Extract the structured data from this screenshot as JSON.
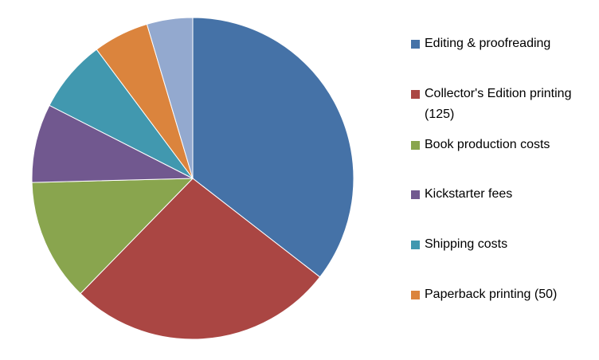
{
  "chart_data": {
    "type": "pie",
    "categories": [
      "Editing & proofreading",
      "Collector's Edition printing (125)",
      "Book production costs",
      "Kickstarter fees",
      "Shipping costs",
      "Paperback printing (50)",
      null
    ],
    "values": [
      35.5,
      26.8,
      12.3,
      7.9,
      7.3,
      5.6,
      4.6
    ],
    "colors": [
      "#4572a7",
      "#aa4643",
      "#89a54e",
      "#71588f",
      "#4198af",
      "#db843d",
      "#93a9cf"
    ],
    "legend": "right"
  }
}
